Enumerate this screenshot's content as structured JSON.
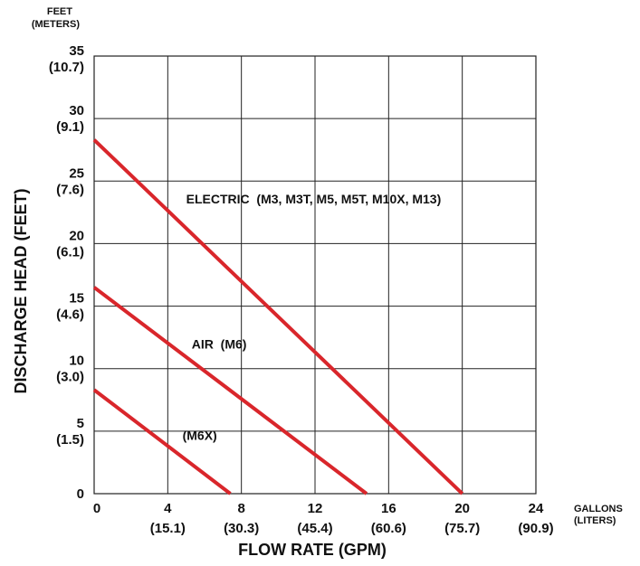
{
  "chart_data": {
    "type": "line",
    "title": "",
    "xlabel": "FLOW RATE (GPM)",
    "ylabel": "DISCHARGE HEAD (FEET)",
    "x_unit_label": [
      "GALLONS",
      "(LITERS)"
    ],
    "y_unit_label": [
      "FEET",
      "(METERS)"
    ],
    "xlim": [
      0,
      24
    ],
    "ylim": [
      0,
      35
    ],
    "grid": true,
    "x_ticks": [
      {
        "value": 0,
        "label": "0",
        "sub": ""
      },
      {
        "value": 4,
        "label": "4",
        "sub": "(15.1)"
      },
      {
        "value": 8,
        "label": "8",
        "sub": "(30.3)"
      },
      {
        "value": 12,
        "label": "12",
        "sub": "(45.4)"
      },
      {
        "value": 16,
        "label": "16",
        "sub": "(60.6)"
      },
      {
        "value": 20,
        "label": "20",
        "sub": "(75.7)"
      },
      {
        "value": 24,
        "label": "24",
        "sub": "(90.9)"
      }
    ],
    "y_ticks": [
      {
        "value": 0,
        "label": "0",
        "sub": ""
      },
      {
        "value": 5,
        "label": "5",
        "sub": "(1.5)"
      },
      {
        "value": 10,
        "label": "10",
        "sub": "(3.0)"
      },
      {
        "value": 15,
        "label": "15",
        "sub": "(4.6)"
      },
      {
        "value": 20,
        "label": "20",
        "sub": "(6.1)"
      },
      {
        "value": 25,
        "label": "25",
        "sub": "(7.6)"
      },
      {
        "value": 30,
        "label": "30",
        "sub": "(9.1)"
      },
      {
        "value": 35,
        "label": "35",
        "sub": "(10.7)"
      }
    ],
    "series": [
      {
        "name": "ELECTRIC  (M3, M3T, M5, M5T, M10X, M13)",
        "color": "#d9262b",
        "points": [
          [
            0,
            28.3
          ],
          [
            20,
            0
          ]
        ],
        "label_at": [
          5,
          23.2
        ]
      },
      {
        "name": "AIR  (M6)",
        "color": "#d9262b",
        "points": [
          [
            0,
            16.5
          ],
          [
            14.8,
            0
          ]
        ],
        "label_at": [
          5.3,
          11.6
        ]
      },
      {
        "name": "(M6X)",
        "color": "#d9262b",
        "points": [
          [
            0,
            8.3
          ],
          [
            7.4,
            0
          ]
        ],
        "label_at": [
          4.8,
          4.3
        ]
      }
    ]
  }
}
